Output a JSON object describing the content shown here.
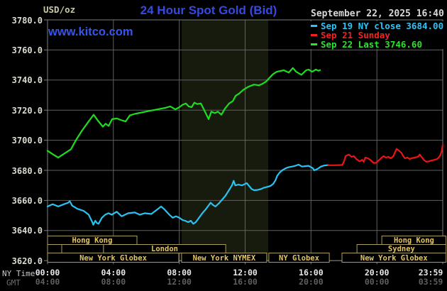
{
  "header": {
    "unit": "USD/oz",
    "title": "24 Hour Spot Gold (Bid)",
    "watermark": "www.kitco.com",
    "datetime": "September 22, 2025 16:40",
    "title_color": "#3649e0",
    "watermark_color": "#3655ee",
    "datetime_color": "#d8d8d8",
    "unit_color": "#c9c9a4"
  },
  "axis_prefix": {
    "ny": "NY Time",
    "gmt": "GMT",
    "ny_color": "#c8c8c8",
    "gmt_color": "#6e6e6e"
  },
  "chart_data": {
    "type": "line",
    "title": "24 Hour Spot Gold (Bid)",
    "ylabel": "USD/oz",
    "ylim": [
      3620,
      3780
    ],
    "xlim_hours": [
      0,
      24
    ],
    "grid": true,
    "colors": {
      "grid": "#616161",
      "border": "#7d7d7d",
      "band": "#171b0e",
      "ylabel_text": "#dbdbd0",
      "xlabel_ny": "#e8e8e8",
      "xlabel_gmt": "#5e5e5e",
      "session_border": "#ac9c60",
      "session_text": "#e2c463"
    },
    "y_ticks": [
      "3780.0",
      "3760.0",
      "3740.0",
      "3720.0",
      "3700.0",
      "3680.0",
      "3660.0",
      "3640.0",
      "3620.0"
    ],
    "x_ticks": {
      "hours": [
        0,
        4,
        8,
        12,
        16,
        20,
        23.98
      ],
      "ny_labels": [
        "00:00",
        "04:00",
        "08:00",
        "12:00",
        "16:00",
        "20:00",
        "23:59"
      ],
      "gmt_labels": [
        "04:00",
        "08:00",
        "12:00",
        "16:00",
        "20:00",
        "00:00",
        "03:59"
      ]
    },
    "nymex_band_hours": [
      8.14,
      13.4
    ],
    "legend_position": "top-right",
    "series": [
      {
        "name": "Sep 19 NY close 3684.00",
        "color": "#29c2f2",
        "legend_color": "#29c5f6",
        "points": [
          [
            0,
            3656
          ],
          [
            0.3,
            3657.5
          ],
          [
            0.65,
            3656
          ],
          [
            1.0,
            3657.5
          ],
          [
            1.25,
            3658.5
          ],
          [
            1.35,
            3659.5
          ],
          [
            1.5,
            3656.5
          ],
          [
            1.8,
            3654.5
          ],
          [
            2.2,
            3653
          ],
          [
            2.5,
            3650.5
          ],
          [
            2.7,
            3646
          ],
          [
            2.78,
            3643.8
          ],
          [
            2.9,
            3646.5
          ],
          [
            3.0,
            3645
          ],
          [
            3.1,
            3644.5
          ],
          [
            3.3,
            3648.5
          ],
          [
            3.5,
            3650.5
          ],
          [
            3.7,
            3651.5
          ],
          [
            3.9,
            3650.5
          ],
          [
            4.2,
            3652.5
          ],
          [
            4.5,
            3649.5
          ],
          [
            4.9,
            3651.5
          ],
          [
            5.3,
            3652
          ],
          [
            5.6,
            3650.5
          ],
          [
            5.9,
            3651.5
          ],
          [
            6.3,
            3651
          ],
          [
            6.6,
            3653.5
          ],
          [
            6.9,
            3656
          ],
          [
            7.1,
            3654
          ],
          [
            7.4,
            3650.5
          ],
          [
            7.6,
            3648.5
          ],
          [
            7.8,
            3649.5
          ],
          [
            8.0,
            3648.5
          ],
          [
            8.2,
            3647
          ],
          [
            8.35,
            3646.5
          ],
          [
            8.55,
            3645.5
          ],
          [
            8.7,
            3646.5
          ],
          [
            8.85,
            3644.5
          ],
          [
            9.0,
            3645.5
          ],
          [
            9.2,
            3648.5
          ],
          [
            9.4,
            3651.5
          ],
          [
            9.6,
            3654
          ],
          [
            9.9,
            3658.5
          ],
          [
            10.05,
            3657
          ],
          [
            10.2,
            3656
          ],
          [
            10.4,
            3658
          ],
          [
            10.6,
            3660.5
          ],
          [
            10.8,
            3663
          ],
          [
            11.0,
            3666.5
          ],
          [
            11.2,
            3670
          ],
          [
            11.3,
            3673
          ],
          [
            11.4,
            3670
          ],
          [
            11.6,
            3670.5
          ],
          [
            11.8,
            3670
          ],
          [
            12.0,
            3671
          ],
          [
            12.1,
            3671.5
          ],
          [
            12.25,
            3669.5
          ],
          [
            12.4,
            3667.5
          ],
          [
            12.55,
            3666.8
          ],
          [
            12.75,
            3667
          ],
          [
            12.95,
            3667.5
          ],
          [
            13.15,
            3668.5
          ],
          [
            13.35,
            3669
          ],
          [
            13.55,
            3669.7
          ],
          [
            13.7,
            3671
          ],
          [
            13.85,
            3673.5
          ],
          [
            13.95,
            3676.5
          ],
          [
            14.1,
            3678.6
          ],
          [
            14.25,
            3680
          ],
          [
            14.4,
            3681
          ],
          [
            14.6,
            3682
          ],
          [
            14.85,
            3682.5
          ],
          [
            15.05,
            3683
          ],
          [
            15.25,
            3683.8
          ],
          [
            15.45,
            3682.5
          ],
          [
            15.65,
            3682.8
          ],
          [
            15.85,
            3683
          ],
          [
            16.1,
            3681.5
          ],
          [
            16.2,
            3680
          ],
          [
            16.4,
            3681
          ],
          [
            16.6,
            3682.5
          ],
          [
            16.8,
            3683.2
          ],
          [
            17.05,
            3683.5
          ]
        ]
      },
      {
        "name": "Sep 21 Sunday",
        "color": "#ea1515",
        "legend_color": "#f32222",
        "points": [
          [
            17.05,
            3683.4
          ],
          [
            17.4,
            3683.4
          ],
          [
            17.7,
            3683.5
          ],
          [
            17.9,
            3683.6
          ],
          [
            18.0,
            3686
          ],
          [
            18.1,
            3689.5
          ],
          [
            18.3,
            3690.5
          ],
          [
            18.45,
            3689
          ],
          [
            18.6,
            3689.5
          ],
          [
            18.75,
            3687.5
          ],
          [
            18.95,
            3686
          ],
          [
            19.1,
            3687
          ],
          [
            19.2,
            3685.7
          ],
          [
            19.3,
            3688.5
          ],
          [
            19.45,
            3688
          ],
          [
            19.6,
            3687
          ],
          [
            19.8,
            3684.9
          ],
          [
            19.95,
            3685
          ],
          [
            20.1,
            3686.5
          ],
          [
            20.3,
            3688.5
          ],
          [
            20.4,
            3689.5
          ],
          [
            20.55,
            3688.5
          ],
          [
            20.7,
            3689
          ],
          [
            20.85,
            3688
          ],
          [
            21.0,
            3689.5
          ],
          [
            21.1,
            3692
          ],
          [
            21.2,
            3694.3
          ],
          [
            21.35,
            3693
          ],
          [
            21.5,
            3691.5
          ],
          [
            21.6,
            3689.5
          ],
          [
            21.7,
            3688
          ],
          [
            21.85,
            3688.5
          ],
          [
            22.0,
            3687.5
          ],
          [
            22.1,
            3688
          ],
          [
            22.3,
            3688.5
          ],
          [
            22.5,
            3689
          ],
          [
            22.6,
            3690.5
          ],
          [
            22.75,
            3688.5
          ],
          [
            22.85,
            3687
          ],
          [
            23.0,
            3685.7
          ],
          [
            23.15,
            3686
          ],
          [
            23.3,
            3686.5
          ],
          [
            23.5,
            3687
          ],
          [
            23.65,
            3687.5
          ],
          [
            23.75,
            3688.5
          ],
          [
            23.85,
            3690
          ],
          [
            23.93,
            3692.5
          ],
          [
            23.99,
            3696.5
          ]
        ]
      },
      {
        "name": "Sep 22 Last 3746.60",
        "color": "#1edc1e",
        "legend_color": "#2ce22c",
        "points": [
          [
            0,
            3693
          ],
          [
            0.34,
            3690.5
          ],
          [
            0.65,
            3688.5
          ],
          [
            1.0,
            3691
          ],
          [
            1.42,
            3694
          ],
          [
            1.72,
            3700
          ],
          [
            2.07,
            3706
          ],
          [
            2.46,
            3712
          ],
          [
            2.8,
            3717
          ],
          [
            3.06,
            3713
          ],
          [
            3.36,
            3709
          ],
          [
            3.53,
            3711
          ],
          [
            3.71,
            3709.5
          ],
          [
            3.92,
            3714
          ],
          [
            4.22,
            3714.5
          ],
          [
            4.44,
            3713.5
          ],
          [
            4.74,
            3712.5
          ],
          [
            5.0,
            3716.5
          ],
          [
            5.3,
            3717.5
          ],
          [
            5.73,
            3718.5
          ],
          [
            6.16,
            3719.5
          ],
          [
            6.68,
            3720.5
          ],
          [
            7.15,
            3721.5
          ],
          [
            7.45,
            3722.5
          ],
          [
            7.76,
            3720.5
          ],
          [
            8.01,
            3722
          ],
          [
            8.19,
            3723.5
          ],
          [
            8.4,
            3724.5
          ],
          [
            8.57,
            3722.5
          ],
          [
            8.75,
            3722
          ],
          [
            8.92,
            3725
          ],
          [
            9.09,
            3724
          ],
          [
            9.31,
            3724.5
          ],
          [
            9.52,
            3720
          ],
          [
            9.78,
            3714
          ],
          [
            9.95,
            3719
          ],
          [
            10.17,
            3718
          ],
          [
            10.34,
            3719
          ],
          [
            10.56,
            3717
          ],
          [
            10.77,
            3721
          ],
          [
            11.03,
            3724.5
          ],
          [
            11.25,
            3726
          ],
          [
            11.42,
            3729.5
          ],
          [
            11.63,
            3731
          ],
          [
            11.89,
            3733.5
          ],
          [
            12.19,
            3735.5
          ],
          [
            12.54,
            3737
          ],
          [
            12.84,
            3736.5
          ],
          [
            13.05,
            3737.5
          ],
          [
            13.27,
            3739
          ],
          [
            13.48,
            3741.5
          ],
          [
            13.7,
            3744
          ],
          [
            13.92,
            3745.5
          ],
          [
            14.13,
            3746
          ],
          [
            14.35,
            3746.5
          ],
          [
            14.65,
            3745
          ],
          [
            14.9,
            3748
          ],
          [
            15.1,
            3745.5
          ],
          [
            15.42,
            3743.5
          ],
          [
            15.7,
            3746.5
          ],
          [
            15.85,
            3747
          ],
          [
            16.07,
            3745.5
          ],
          [
            16.3,
            3747
          ],
          [
            16.45,
            3746.2
          ],
          [
            16.55,
            3746.6
          ]
        ]
      }
    ],
    "sessions": [
      {
        "row": 0,
        "boxes": [
          {
            "h0": 0,
            "h1": 5.43,
            "label": "Hong Kong"
          },
          {
            "h0": 20.3,
            "h1": 24.2,
            "label": "Hong Kong"
          }
        ]
      },
      {
        "row": 1,
        "boxes": [
          {
            "h0": 0,
            "h1": 0.86,
            "label": ""
          },
          {
            "h0": 0.86,
            "h1": 3.4,
            "label": ""
          },
          {
            "h0": 3.4,
            "h1": 10.82,
            "label": "London"
          },
          {
            "h0": 18.79,
            "h1": 24.2,
            "label": "Sydney"
          }
        ]
      },
      {
        "row": 2,
        "boxes": [
          {
            "h0": 0,
            "h1": 7.97,
            "label": "New York Globex"
          },
          {
            "h0": 8.14,
            "h1": 13.31,
            "label": "New York NYMEX"
          },
          {
            "h0": 13.44,
            "h1": 17.11,
            "label": "NY Globex"
          },
          {
            "h0": 17.88,
            "h1": 24.2,
            "label": "New York Globex"
          }
        ]
      }
    ]
  }
}
